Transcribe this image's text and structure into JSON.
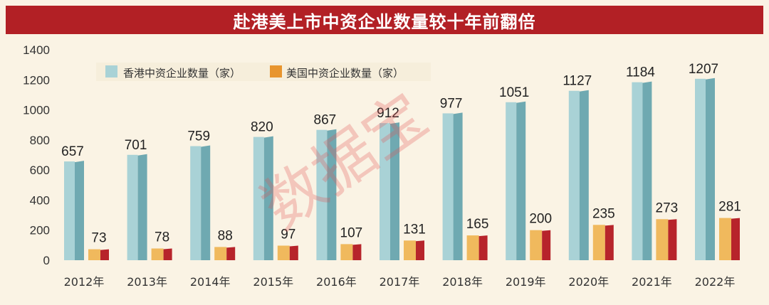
{
  "title": "赴港美上市中资企业数量较十年前翻倍",
  "watermark": "数据宝",
  "colors": {
    "title_bg": "#b22025",
    "hk_front": "#a9d2d6",
    "hk_side": "#6fa9b1",
    "us_front": "#f0b95d",
    "us_side": "#b7242b"
  },
  "chart_data": {
    "type": "bar",
    "categories": [
      "2012年",
      "2013年",
      "2014年",
      "2015年",
      "2016年",
      "2017年",
      "2018年",
      "2019年",
      "2020年",
      "2021年",
      "2022年"
    ],
    "series": [
      {
        "name": "香港中资企业数量（家）",
        "values": [
          657,
          701,
          759,
          820,
          867,
          912,
          977,
          1051,
          1127,
          1184,
          1207
        ]
      },
      {
        "name": "美国中资企业数量（家）",
        "values": [
          73,
          78,
          88,
          97,
          107,
          131,
          165,
          200,
          235,
          273,
          281
        ]
      }
    ],
    "ylim": [
      0,
      1400
    ],
    "yticks": [
      0,
      200,
      400,
      600,
      800,
      1000,
      1200,
      1400
    ],
    "ytick_labels": [
      "0",
      "200",
      "400",
      "600",
      "800",
      "1000",
      "1200",
      "1400"
    ],
    "legend_position": "top-left",
    "grid": false
  }
}
